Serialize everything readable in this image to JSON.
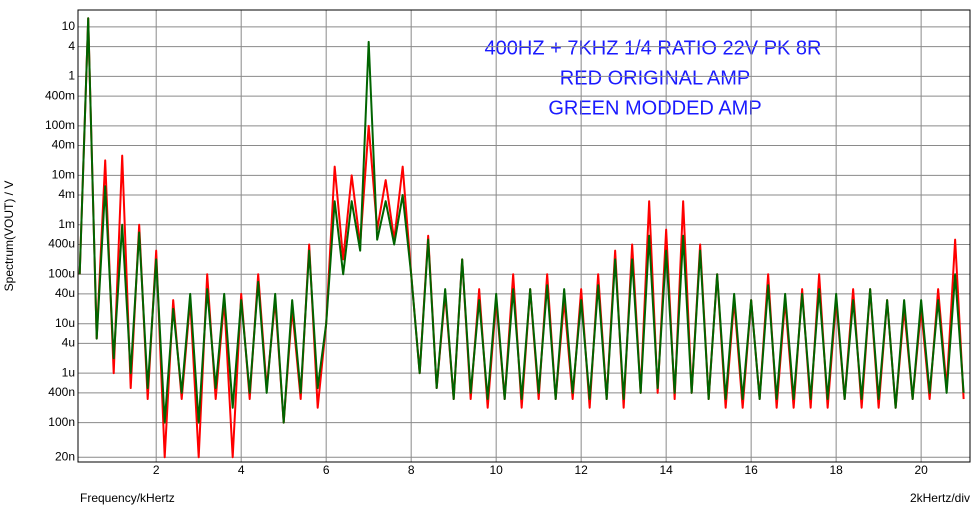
{
  "chart_data": {
    "type": "line",
    "annotations": [
      "400HZ  + 7KHZ  1/4 RATIO 22V PK 8R",
      "RED ORIGINAL AMP",
      "GREEN MODDED AMP"
    ],
    "x_label": "Frequency/kHertz",
    "x_scale_label": "2kHertz/div",
    "y_label": "Spectrum(VOUT) / V",
    "log_y": true,
    "grid": true,
    "xlim": [
      0.16,
      21.15
    ],
    "xticks": [
      2,
      4,
      6,
      8,
      10,
      12,
      14,
      16,
      18,
      20
    ],
    "ylim": [
      1.6e-08,
      22
    ],
    "yticks": [
      10,
      4,
      1,
      {
        "value": 0.4,
        "label": "400m"
      },
      {
        "value": 0.1,
        "label": "100m"
      },
      {
        "value": 0.04,
        "label": "40m"
      },
      {
        "value": 0.01,
        "label": "10m"
      },
      {
        "value": 0.004,
        "label": "4m"
      },
      {
        "value": 0.001,
        "label": "1m"
      },
      {
        "value": 0.0004,
        "label": "400u"
      },
      {
        "value": 0.0001,
        "label": "100u"
      },
      {
        "value": 4e-05,
        "label": "40u"
      },
      {
        "value": 1e-05,
        "label": "10u"
      },
      {
        "value": 4e-06,
        "label": "4u"
      },
      {
        "value": 1e-06,
        "label": "1u"
      },
      {
        "value": 4e-07,
        "label": "400n"
      },
      {
        "value": 1e-07,
        "label": "100n"
      },
      {
        "value": 2e-08,
        "label": "20n"
      }
    ],
    "x": [
      0.2,
      0.4,
      0.6,
      0.8,
      1.0,
      1.2,
      1.4,
      1.6,
      1.8,
      2.0,
      2.2,
      2.4,
      2.6,
      2.8,
      3.0,
      3.2,
      3.4,
      3.6,
      3.8,
      4.0,
      4.2,
      4.4,
      4.6,
      4.8,
      5.0,
      5.2,
      5.4,
      5.6,
      5.8,
      6.0,
      6.2,
      6.4,
      6.6,
      6.8,
      7.0,
      7.2,
      7.4,
      7.6,
      7.8,
      8.0,
      8.2,
      8.4,
      8.6,
      8.8,
      9.0,
      9.2,
      9.4,
      9.6,
      9.8,
      10.0,
      10.2,
      10.4,
      10.6,
      10.8,
      11.0,
      11.2,
      11.4,
      11.6,
      11.8,
      12.0,
      12.2,
      12.4,
      12.6,
      12.8,
      13.0,
      13.2,
      13.4,
      13.6,
      13.8,
      14.0,
      14.2,
      14.4,
      14.6,
      14.8,
      15.0,
      15.2,
      15.4,
      15.6,
      15.8,
      16.0,
      16.2,
      16.4,
      16.6,
      16.8,
      17.0,
      17.2,
      17.4,
      17.6,
      17.8,
      18.0,
      18.2,
      18.4,
      18.6,
      18.8,
      19.0,
      19.2,
      19.4,
      19.6,
      19.8,
      20.0,
      20.2,
      20.4,
      20.6,
      20.8,
      21.0
    ],
    "series": [
      {
        "color": "#ff0000",
        "values": [
          0.0001,
          15,
          5e-06,
          0.02,
          1e-06,
          0.025,
          5e-07,
          0.001,
          3e-07,
          0.0003,
          2e-08,
          3e-05,
          3e-07,
          3e-05,
          2e-08,
          0.0001,
          3e-07,
          3e-05,
          2e-08,
          4e-05,
          3e-07,
          0.0001,
          5e-07,
          3e-05,
          1e-07,
          2e-05,
          3e-07,
          0.0004,
          2e-07,
          1e-05,
          0.015,
          0.0002,
          0.01,
          0.0004,
          0.1,
          0.0008,
          0.008,
          0.0005,
          0.015,
          0.0001,
          1e-06,
          0.0006,
          5e-07,
          4e-05,
          3e-07,
          0.0002,
          3e-07,
          5e-05,
          2e-07,
          3e-05,
          3e-07,
          0.0001,
          2e-07,
          5e-05,
          3e-07,
          0.0001,
          3e-07,
          3e-05,
          3e-07,
          5e-05,
          2e-07,
          0.0001,
          3e-07,
          0.0003,
          2e-07,
          0.0004,
          4e-07,
          0.003,
          4e-07,
          0.0008,
          3e-07,
          0.003,
          4e-07,
          0.0004,
          3e-07,
          0.0001,
          2e-07,
          3e-05,
          2e-07,
          3e-05,
          3e-07,
          0.0001,
          2e-07,
          3e-05,
          2e-07,
          5e-05,
          2e-07,
          0.0001,
          2e-07,
          3e-05,
          3e-07,
          5e-05,
          2e-07,
          5e-05,
          2e-07,
          3e-05,
          2e-07,
          2e-05,
          3e-07,
          2e-05,
          3e-07,
          5e-05,
          5e-07,
          0.0005,
          3e-07
        ]
      },
      {
        "color": "#006400",
        "values": [
          0.0001,
          15,
          5e-06,
          0.006,
          2e-06,
          0.001,
          1e-06,
          0.0007,
          5e-07,
          0.0002,
          1e-07,
          2e-05,
          4e-07,
          4e-05,
          1e-07,
          5e-05,
          5e-07,
          4e-05,
          2e-07,
          3e-05,
          4e-07,
          7e-05,
          4e-07,
          4e-05,
          1e-07,
          3e-05,
          4e-07,
          0.0003,
          5e-07,
          1e-05,
          0.003,
          0.0001,
          0.003,
          0.0003,
          5,
          0.0005,
          0.003,
          0.0004,
          0.004,
          0.0001,
          1e-06,
          0.0005,
          5e-07,
          5e-05,
          3e-07,
          0.0002,
          4e-07,
          3e-05,
          3e-07,
          4e-05,
          3e-07,
          5e-05,
          3e-07,
          5e-05,
          4e-07,
          6e-05,
          3e-07,
          5e-05,
          4e-07,
          3e-05,
          3e-07,
          6e-05,
          3e-07,
          0.0002,
          3e-07,
          0.0002,
          4e-07,
          0.0006,
          5e-07,
          0.0003,
          4e-07,
          0.0006,
          4e-07,
          0.0003,
          3e-07,
          0.0001,
          3e-07,
          4e-05,
          3e-07,
          3e-05,
          3e-07,
          6e-05,
          3e-07,
          4e-05,
          3e-07,
          4e-05,
          3e-07,
          5e-05,
          3e-07,
          4e-05,
          3e-07,
          3e-05,
          3e-07,
          5e-05,
          3e-07,
          3e-05,
          2e-07,
          3e-05,
          3e-07,
          3e-05,
          4e-07,
          3e-05,
          4e-07,
          0.0001,
          4e-07
        ]
      }
    ]
  }
}
